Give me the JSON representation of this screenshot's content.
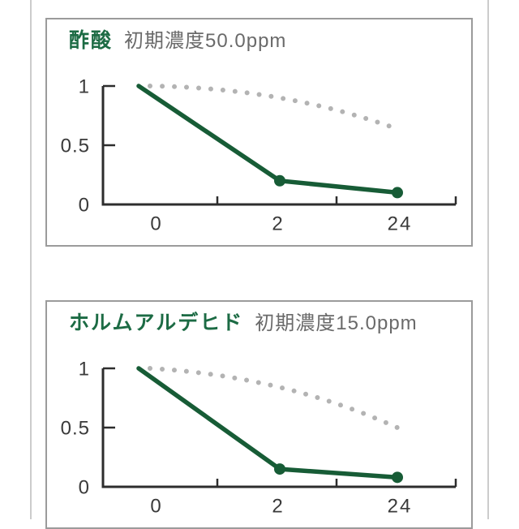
{
  "theme": {
    "background": "#ffffff",
    "page_edge_line": "#cccccc",
    "card_border": "#9b9b9b",
    "title_green": "#1c6b44",
    "subtitle_gray": "#6a6a6a",
    "axis_color": "#2d2d2d",
    "label_color": "#3a3a3a"
  },
  "chart_data": [
    {
      "type": "line",
      "title": "酢酸",
      "subtitle": "初期濃度50.0ppm",
      "x_values_hours": [
        0,
        2,
        24
      ],
      "x_tick_labels": [
        "0",
        "2",
        "24"
      ],
      "y_tick_labels": [
        "1",
        "0.5",
        "0"
      ],
      "y_tick_values": [
        1,
        0.5,
        0
      ],
      "ylim": [
        0,
        1
      ],
      "grid": false,
      "legend": "none",
      "series": [
        {
          "name": "gray-dotted-reference-line",
          "style": "dotted",
          "color": "#b3b3b3",
          "values": [
            1.0,
            0.9,
            0.63
          ],
          "markers": [
            false,
            false,
            false
          ]
        },
        {
          "name": "green-solid-line",
          "style": "solid",
          "color": "#175c36",
          "marker_color": "#175c36",
          "values": [
            1.0,
            0.2,
            0.1
          ],
          "markers": [
            false,
            true,
            true
          ]
        }
      ]
    },
    {
      "type": "line",
      "title": "ホルムアルデヒド",
      "subtitle": "初期濃度15.0ppm",
      "x_values_hours": [
        0,
        2,
        24
      ],
      "x_tick_labels": [
        "0",
        "2",
        "24"
      ],
      "y_tick_labels": [
        "1",
        "0.5",
        "0"
      ],
      "y_tick_values": [
        1,
        0.5,
        0
      ],
      "ylim": [
        0,
        1
      ],
      "grid": false,
      "legend": "none",
      "series": [
        {
          "name": "gray-dotted-reference-line",
          "style": "dotted",
          "color": "#b3b3b3",
          "values": [
            1.0,
            0.84,
            0.49
          ],
          "markers": [
            false,
            false,
            false
          ]
        },
        {
          "name": "green-solid-line",
          "style": "solid",
          "color": "#175c36",
          "marker_color": "#175c36",
          "values": [
            1.0,
            0.15,
            0.08
          ],
          "markers": [
            false,
            true,
            true
          ]
        }
      ]
    }
  ]
}
